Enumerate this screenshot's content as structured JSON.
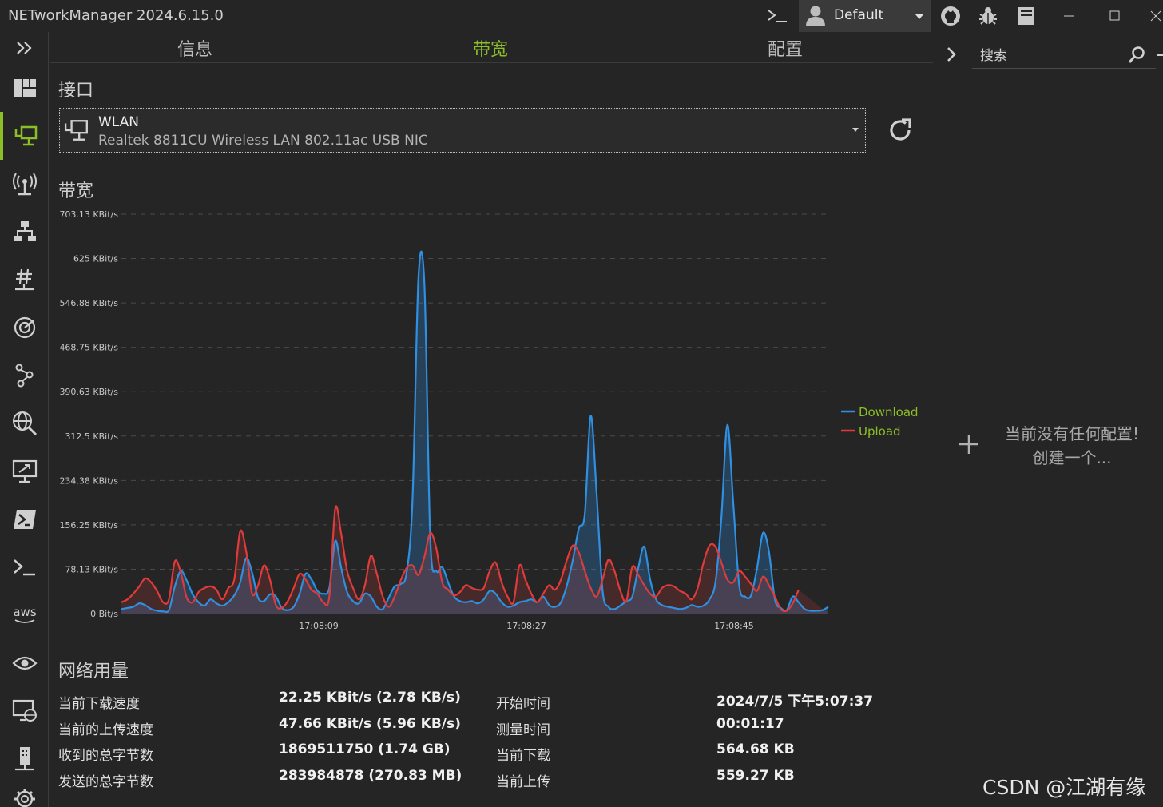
{
  "window": {
    "title": "NETworkManager 2024.6.15.0"
  },
  "profile": {
    "name": "Default"
  },
  "tabs": [
    {
      "label": "信息"
    },
    {
      "label": "带宽"
    },
    {
      "label": "配置"
    }
  ],
  "interface": {
    "section_title": "接口",
    "name": "WLAN",
    "description": "Realtek 8811CU Wireless LAN 802.11ac USB NIC"
  },
  "bandwidth": {
    "section_title": "带宽"
  },
  "chart_data": {
    "type": "line",
    "y_ticks": [
      "0 Bit/s",
      "78.13 KBit/s",
      "156.25 KBit/s",
      "234.38 KBit/s",
      "312.5 KBit/s",
      "390.63 KBit/s",
      "468.75 KBit/s",
      "546.88 KBit/s",
      "625 KBit/s",
      "703.13 KBit/s"
    ],
    "ylim": [
      0,
      703.13
    ],
    "yunit": "KBit/s",
    "x_tick_labels": [
      "17:08:09",
      "17:08:27",
      "17:08:45"
    ],
    "grid": true,
    "legend_position": "right",
    "series": [
      {
        "name": "Download",
        "color": "#2f8fe0",
        "values": [
          8,
          10,
          12,
          18,
          15,
          8,
          5,
          4,
          6,
          48,
          75,
          58,
          34,
          20,
          14,
          25,
          18,
          14,
          20,
          32,
          55,
          98,
          72,
          28,
          22,
          34,
          30,
          10,
          6,
          12,
          35,
          70,
          60,
          40,
          35,
          45,
          128,
          80,
          38,
          22,
          18,
          35,
          30,
          12,
          8,
          28,
          48,
          52,
          72,
          200,
          590,
          580,
          130,
          75,
          82,
          55,
          30,
          22,
          20,
          22,
          18,
          25,
          40,
          35,
          20,
          12,
          14,
          20,
          22,
          25,
          20,
          30,
          15,
          12,
          20,
          50,
          95,
          150,
          175,
          348,
          210,
          40,
          12,
          8,
          14,
          22,
          30,
          80,
          118,
          60,
          25,
          15,
          12,
          10,
          8,
          10,
          15,
          12,
          14,
          25,
          55,
          168,
          332,
          195,
          50,
          30,
          32,
          80,
          142,
          110,
          25,
          10,
          6,
          30,
          20,
          8,
          5,
          5,
          6,
          12
        ]
      },
      {
        "name": "Upload",
        "color": "#e03b3b",
        "values": [
          20,
          25,
          35,
          48,
          62,
          55,
          40,
          20,
          25,
          92,
          72,
          28,
          20,
          38,
          45,
          48,
          42,
          25,
          45,
          60,
          145,
          110,
          35,
          50,
          85,
          60,
          15,
          10,
          22,
          45,
          70,
          60,
          42,
          35,
          20,
          30,
          185,
          140,
          75,
          45,
          25,
          50,
          102,
          70,
          30,
          12,
          30,
          58,
          80,
          85,
          68,
          100,
          142,
          115,
          55,
          42,
          32,
          38,
          50,
          45,
          42,
          45,
          75,
          90,
          55,
          30,
          20,
          85,
          60,
          35,
          20,
          35,
          50,
          42,
          60,
          95,
          120,
          108,
          75,
          45,
          30,
          60,
          95,
          75,
          40,
          22,
          82,
          68,
          50,
          35,
          30,
          45,
          50,
          48,
          40,
          35,
          25,
          45,
          90,
          120,
          118,
          90,
          60,
          55,
          75,
          65,
          52,
          40,
          65,
          50,
          30,
          8,
          5,
          18,
          42
        ]
      }
    ]
  },
  "usage": {
    "section_title": "网络用量",
    "left": [
      {
        "label": "当前下载速度",
        "value": "22.25 KBit/s (2.78 KB/s)"
      },
      {
        "label": "当前的上传速度",
        "value": "47.66 KBit/s (5.96 KB/s)"
      },
      {
        "label": "收到的总字节数",
        "value": "1869511750 (1.74 GB)"
      },
      {
        "label": "发送的总字节数",
        "value": "283984878 (270.83 MB)"
      }
    ],
    "right": [
      {
        "label": "开始时间",
        "value": "2024/7/5 下午5:07:37"
      },
      {
        "label": "测量时间",
        "value": "00:01:17"
      },
      {
        "label": "当前下载",
        "value": "564.68 KB"
      },
      {
        "label": "当前上传",
        "value": "559.27 KB"
      }
    ]
  },
  "right_panel": {
    "search_placeholder": "搜索",
    "empty_line1": "当前没有任何配置!",
    "empty_line2": "创建一个..."
  },
  "watermark": "CSDN @江湖有缘",
  "colors": {
    "accent": "#8cbf26",
    "download": "#2f8fe0",
    "upload": "#e03b3b"
  }
}
